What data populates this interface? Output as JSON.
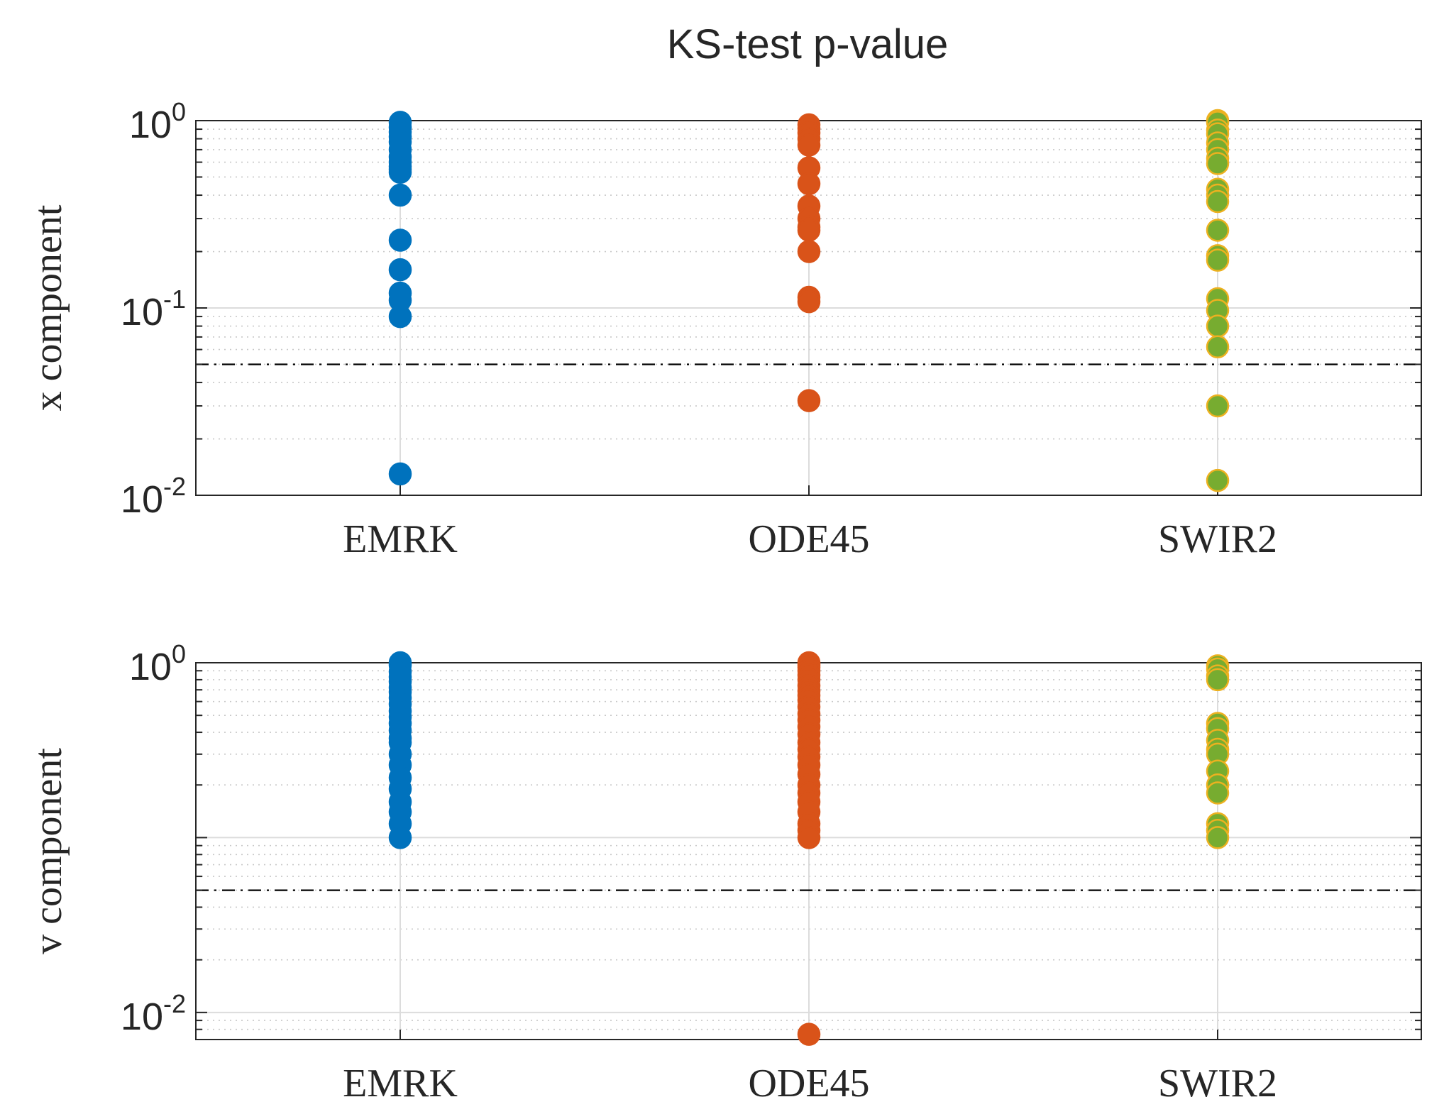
{
  "title": "KS-test p-value",
  "chart_data": [
    {
      "type": "scatter",
      "ylabel": "x component",
      "yscale": "log",
      "ylim": [
        0.01,
        1
      ],
      "ytick_labels": [
        {
          "base": "10",
          "exp": "-2",
          "value": 0.01
        },
        {
          "base": "10",
          "exp": "-1",
          "value": 0.1
        },
        {
          "base": "10",
          "exp": "0",
          "value": 1
        }
      ],
      "categories": [
        "EMRK",
        "ODE45",
        "SWIR2"
      ],
      "threshold": 0.05,
      "grid": true,
      "series": [
        {
          "name": "EMRK",
          "color": "#0072BD",
          "edge": "#0072BD",
          "values": [
            0.98,
            0.92,
            0.87,
            0.82,
            0.77,
            0.7,
            0.64,
            0.6,
            0.57,
            0.55,
            0.53,
            0.4,
            0.23,
            0.16,
            0.12,
            0.11,
            0.09,
            0.013
          ]
        },
        {
          "name": "ODE45",
          "color": "#D95319",
          "edge": "#D95319",
          "values": [
            0.95,
            0.91,
            0.86,
            0.8,
            0.74,
            0.56,
            0.46,
            0.35,
            0.3,
            0.27,
            0.26,
            0.2,
            0.114,
            0.108,
            0.032
          ]
        },
        {
          "name": "SWIR2",
          "color": "#77AC30",
          "edge": "#EDB120",
          "values": [
            1.0,
            0.98,
            0.89,
            0.85,
            0.76,
            0.7,
            0.63,
            0.59,
            0.43,
            0.4,
            0.37,
            0.26,
            0.19,
            0.18,
            0.112,
            0.097,
            0.08,
            0.062,
            0.03,
            0.012
          ]
        }
      ]
    },
    {
      "type": "scatter",
      "ylabel": "v component",
      "yscale": "log",
      "ylim": [
        0.007,
        1
      ],
      "ytick_labels": [
        {
          "base": "10",
          "exp": "-2",
          "value": 0.01
        },
        {
          "base": "10",
          "exp": "0",
          "value": 1
        }
      ],
      "categories": [
        "EMRK",
        "ODE45",
        "SWIR2"
      ],
      "threshold": 0.05,
      "grid": true,
      "series": [
        {
          "name": "EMRK",
          "color": "#0072BD",
          "edge": "#0072BD",
          "values": [
            1.0,
            0.97,
            0.89,
            0.83,
            0.78,
            0.72,
            0.68,
            0.63,
            0.58,
            0.53,
            0.49,
            0.45,
            0.41,
            0.37,
            0.35,
            0.3,
            0.26,
            0.22,
            0.19,
            0.16,
            0.14,
            0.12,
            0.1
          ]
        },
        {
          "name": "ODE45",
          "color": "#D95319",
          "edge": "#D95319",
          "values": [
            1.0,
            0.97,
            0.94,
            0.9,
            0.85,
            0.8,
            0.74,
            0.69,
            0.65,
            0.61,
            0.56,
            0.51,
            0.47,
            0.43,
            0.39,
            0.35,
            0.32,
            0.29,
            0.26,
            0.23,
            0.2,
            0.18,
            0.16,
            0.14,
            0.12,
            0.11,
            0.1,
            0.0075
          ]
        },
        {
          "name": "SWIR2",
          "color": "#77AC30",
          "edge": "#EDB120",
          "values": [
            0.96,
            0.92,
            0.84,
            0.8,
            0.45,
            0.42,
            0.36,
            0.32,
            0.3,
            0.24,
            0.2,
            0.18,
            0.12,
            0.11,
            0.1
          ]
        }
      ]
    }
  ]
}
